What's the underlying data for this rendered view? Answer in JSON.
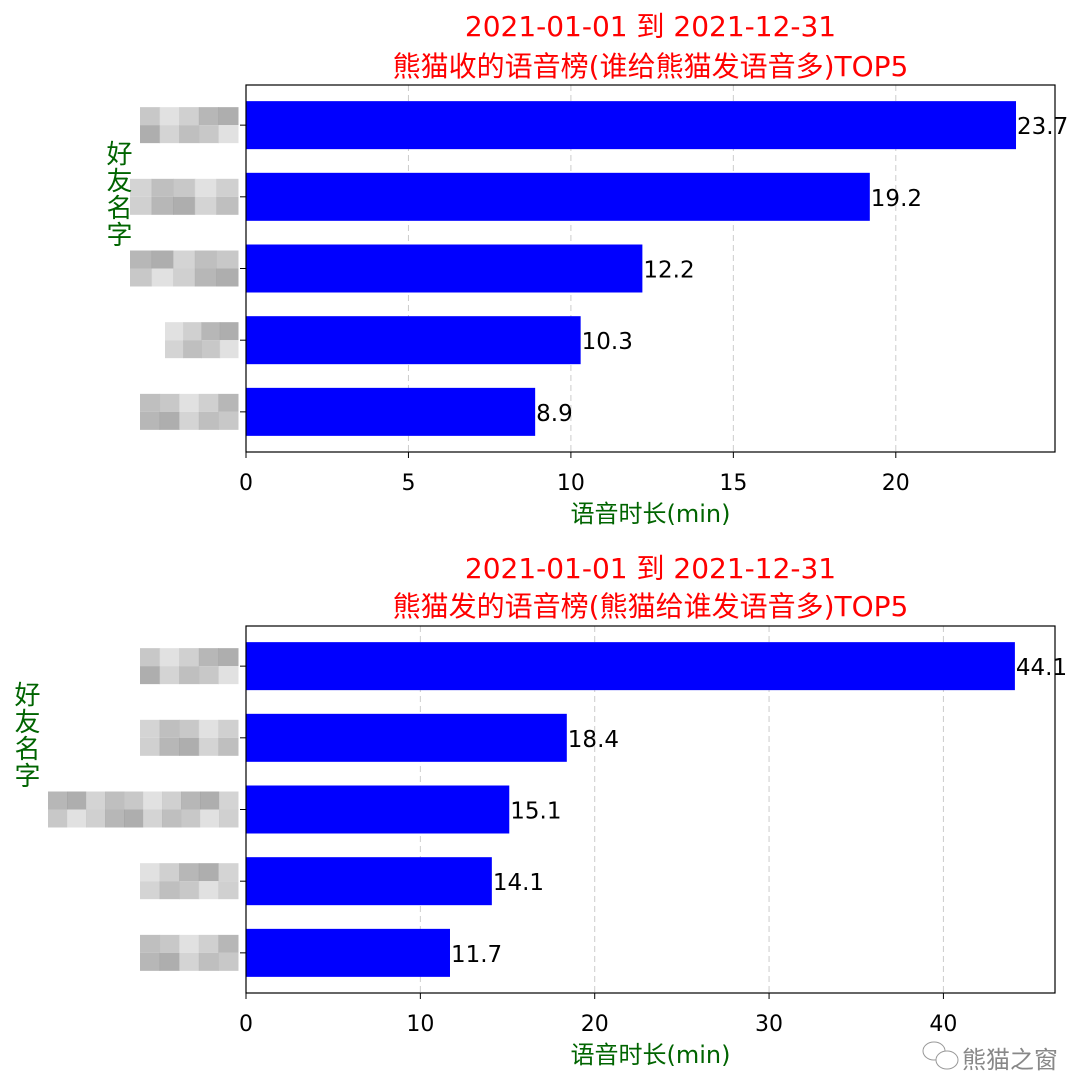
{
  "chart_data": [
    {
      "type": "bar",
      "orientation": "horizontal",
      "title": [
        "2021-01-01 到 2021-12-31",
        "熊猫收的语音榜(谁给熊猫发语音多)TOP5"
      ],
      "xlabel": "语音时长(min)",
      "ylabel": "好友名字",
      "categories_obscured": true,
      "values": [
        23.7,
        19.2,
        12.2,
        10.3,
        8.9
      ],
      "data_labels": [
        "23.7",
        "19.2",
        "12.2",
        "10.3",
        "8.9"
      ],
      "xticks": [
        0,
        5,
        10,
        15,
        20
      ],
      "xlim": [
        0,
        24.9
      ],
      "grid": "x, dashed",
      "bar_color": "#0000ff",
      "title_color": "#ff0000",
      "label_color": "#006400"
    },
    {
      "type": "bar",
      "orientation": "horizontal",
      "title": [
        "2021-01-01 到 2021-12-31",
        "熊猫发的语音榜(熊猫给谁发语音多)TOP5"
      ],
      "xlabel": "语音时长(min)",
      "ylabel": "好友名字",
      "categories_obscured": true,
      "values": [
        44.1,
        18.4,
        15.1,
        14.1,
        11.7
      ],
      "data_labels": [
        "44.1",
        "18.4",
        "15.1",
        "14.1",
        "11.7"
      ],
      "xticks": [
        0,
        10,
        20,
        30,
        40
      ],
      "xlim": [
        0,
        46.4
      ],
      "grid": "x, dashed",
      "bar_color": "#0000ff",
      "title_color": "#ff0000",
      "label_color": "#006400"
    }
  ],
  "watermark": {
    "text": "熊猫之窗",
    "icon": "wechat-icon"
  }
}
